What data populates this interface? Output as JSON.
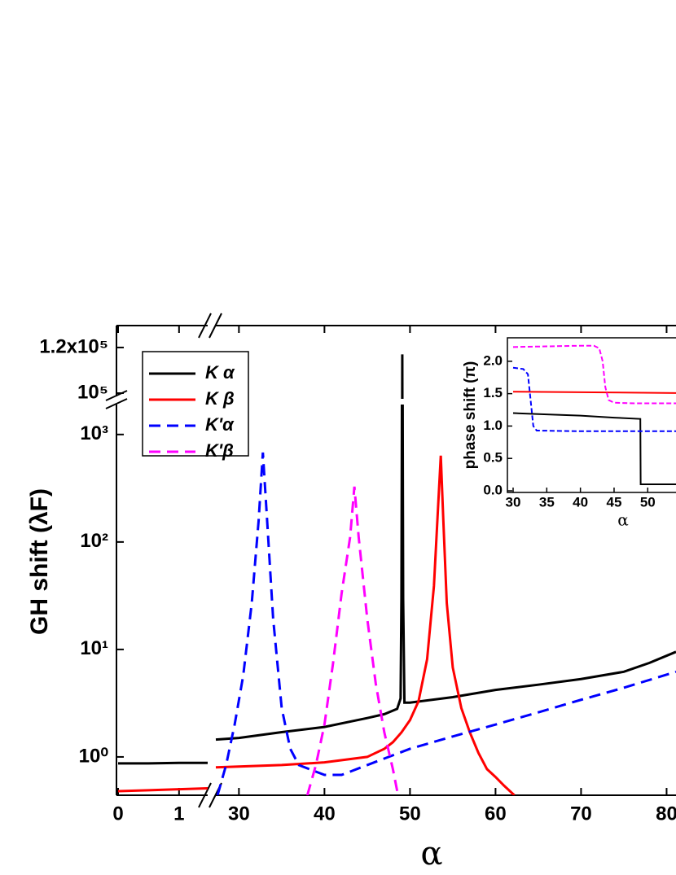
{
  "chart_data": [
    {
      "type": "line",
      "x_label": "α",
      "y_label": "GH shift (λF)",
      "legend": "upper left",
      "x_segments": [
        {
          "xlim": [
            0,
            1.47
          ],
          "xticks": [
            0,
            1
          ]
        },
        {
          "xlim": [
            27.3,
            81.1
          ],
          "xticks": [
            30,
            40,
            50,
            60,
            70,
            80
          ]
        }
      ],
      "y_segments": [
        {
          "ylim": [
            0.44,
            1900
          ],
          "log": true,
          "yticks": [
            {
              "value": 1,
              "label": "10⁰"
            },
            {
              "value": 10,
              "label": "10¹"
            },
            {
              "value": 100,
              "label": "10²"
            },
            {
              "value": 1000,
              "label": "10³"
            }
          ]
        },
        {
          "ylim": [
            97500,
            129600
          ],
          "log": false,
          "yticks": [
            {
              "value": 100000,
              "label": "10⁵"
            },
            {
              "value": 120000,
              "label": "1.2x10⁵"
            }
          ]
        }
      ],
      "series": [
        {
          "name": "K α",
          "color": "#000000",
          "dash": false,
          "x": [
            0,
            0.5,
            1,
            1.47,
            27.3,
            30,
            35,
            40,
            45,
            47,
            48.5,
            48.9,
            49.0,
            49.05,
            49.1,
            49.15,
            49.2,
            49.35,
            50,
            55,
            60,
            65,
            70,
            75,
            78,
            81.1
          ],
          "values": [
            0.87,
            0.87,
            0.88,
            0.88,
            1.45,
            1.5,
            1.7,
            1.9,
            2.3,
            2.5,
            2.8,
            3.5,
            30,
            1000,
            117000,
            1000,
            30,
            3.2,
            3.2,
            3.6,
            4.2,
            4.7,
            5.3,
            6.2,
            7.5,
            9.5
          ]
        },
        {
          "name": "K β",
          "color": "#ff0000",
          "dash": false,
          "x": [
            0,
            0.5,
            1,
            1.47,
            27.3,
            35,
            40,
            45,
            47,
            48,
            49,
            50,
            51,
            52,
            52.8,
            53.3,
            53.6,
            53.9,
            54.3,
            55,
            56,
            57,
            58,
            59,
            60,
            61,
            62.2
          ],
          "values": [
            0.48,
            0.49,
            0.5,
            0.51,
            0.8,
            0.84,
            0.89,
            1.0,
            1.19,
            1.37,
            1.69,
            2.2,
            3.3,
            8.1,
            39,
            224,
            635,
            157,
            27,
            6.8,
            2.85,
            1.69,
            1.09,
            0.77,
            0.65,
            0.54,
            0.44
          ]
        },
        {
          "name": "K'α",
          "color": "#0000ff",
          "dash": true,
          "x": [
            27.5,
            28.5,
            29.5,
            30.5,
            31.5,
            32.3,
            32.8,
            33.3,
            34,
            35,
            36,
            37,
            40,
            42,
            45,
            50,
            55,
            60,
            65,
            70,
            75,
            81.1
          ],
          "values": [
            0.44,
            0.84,
            2.0,
            5.7,
            27,
            157,
            680,
            157,
            19.4,
            2.85,
            1.19,
            0.84,
            0.68,
            0.68,
            0.84,
            1.19,
            1.55,
            2.0,
            2.6,
            3.4,
            4.4,
            6.2
          ]
        },
        {
          "name": "K'β",
          "color": "#ff00ff",
          "dash": true,
          "x": [
            38,
            39,
            40,
            41,
            42,
            43,
            43.5,
            44,
            45,
            46,
            47,
            48,
            48.6
          ],
          "values": [
            0.44,
            0.84,
            2.0,
            7.4,
            33,
            111,
            327,
            111,
            19.4,
            4.8,
            1.69,
            0.77,
            0.44
          ]
        }
      ]
    },
    {
      "type": "line",
      "x_label": "α",
      "y_label": "phase shift (π)",
      "xlim": [
        30,
        54.2
      ],
      "xticks": [
        30,
        35,
        40,
        45,
        50
      ],
      "ylim": [
        0,
        2.4
      ],
      "yticks": [
        {
          "value": 0,
          "label": "0.0"
        },
        {
          "value": 0.5,
          "label": "0.5"
        },
        {
          "value": 1,
          "label": "1.0"
        },
        {
          "value": 1.5,
          "label": "1.5"
        },
        {
          "value": 2,
          "label": "2.0"
        }
      ],
      "series": [
        {
          "color": "#000000",
          "dash": false,
          "x": [
            30,
            35,
            40,
            45,
            48.9,
            48.95,
            54.2
          ],
          "values": [
            1.2,
            1.18,
            1.16,
            1.13,
            1.11,
            0.1,
            0.1
          ]
        },
        {
          "color": "#ff0000",
          "dash": false,
          "x": [
            30,
            42,
            54.2
          ],
          "values": [
            1.53,
            1.52,
            1.51
          ]
        },
        {
          "color": "#0000ff",
          "dash": true,
          "x": [
            30,
            31.5,
            32.2,
            32.6,
            33,
            33.5,
            40,
            54.2
          ],
          "values": [
            1.9,
            1.88,
            1.8,
            1.4,
            1.0,
            0.93,
            0.92,
            0.92
          ]
        },
        {
          "color": "#ff00ff",
          "dash": true,
          "x": [
            30,
            35,
            40,
            42,
            42.8,
            43.3,
            43.7,
            44.2,
            45,
            48,
            54.2
          ],
          "values": [
            2.22,
            2.23,
            2.24,
            2.24,
            2.2,
            2.0,
            1.6,
            1.4,
            1.36,
            1.35,
            1.35
          ]
        }
      ]
    }
  ]
}
